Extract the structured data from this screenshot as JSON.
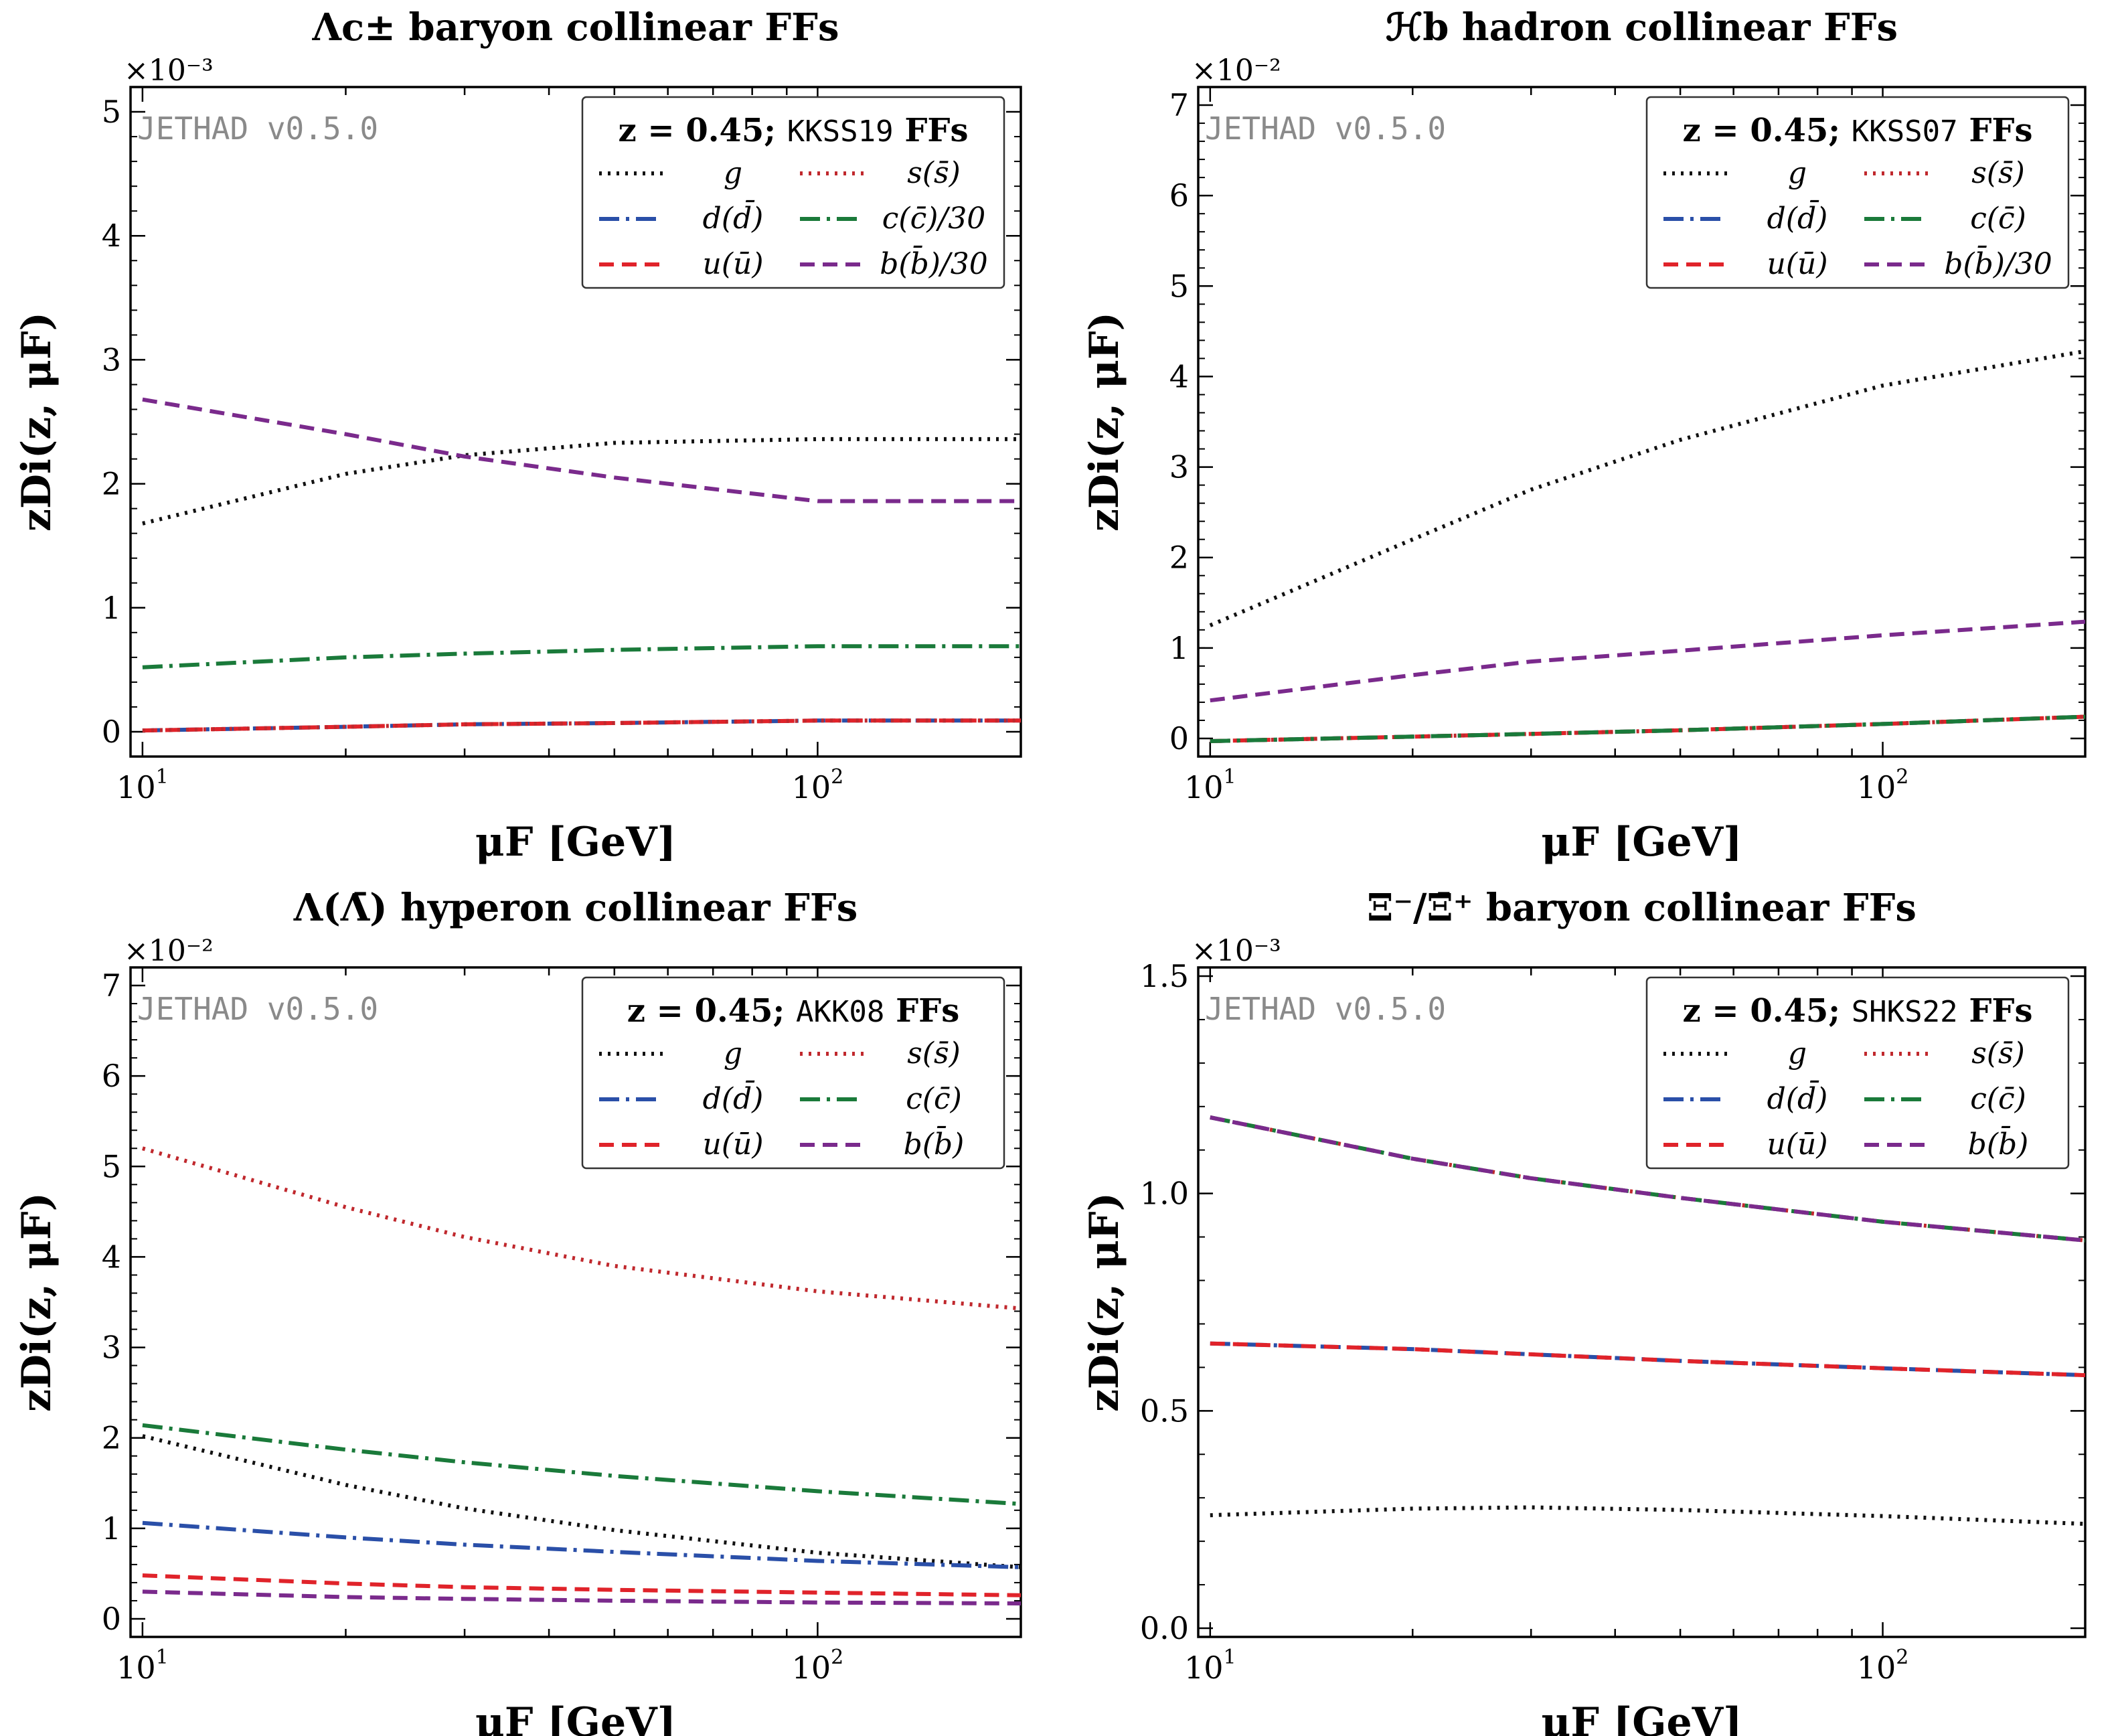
{
  "figure": {
    "legend_z_label": "z = 0.45;",
    "watermark": "JETHAD v0.5.0",
    "xlabel": "μF [GeV]",
    "ylabel": "zDi(z, μF)",
    "x_tick_labels": [
      "10",
      "10"
    ],
    "x_tick_exponents": [
      "1",
      "2"
    ]
  },
  "chart_data": [
    {
      "type": "line",
      "title": "Λc± baryon collinear FFs",
      "xlabel": "μF [GeV]",
      "ylabel": "zDi(z, μF)",
      "xscale": "log",
      "xlim": [
        9.6,
        200
      ],
      "ylim": [
        -0.2,
        5.2
      ],
      "y_multiplier": "×10⁻³",
      "y_ticks": [
        0,
        1,
        2,
        3,
        4,
        5
      ],
      "legend_set": "KKSS19",
      "legend_suffix": "FFs",
      "legend_position": "top-right",
      "x": [
        10,
        20,
        30,
        50,
        100,
        200
      ],
      "series": [
        {
          "name": "g",
          "style": "dotted",
          "color": "#111111",
          "values": [
            1.68,
            2.08,
            2.23,
            2.33,
            2.36,
            2.36
          ]
        },
        {
          "name": "d(d̄)",
          "style": "dashdot",
          "color": "#2a4fa8",
          "values": [
            0.01,
            0.04,
            0.06,
            0.07,
            0.09,
            0.09
          ]
        },
        {
          "name": "u(ū)",
          "style": "dashed",
          "color": "#e0232a",
          "values": [
            0.01,
            0.04,
            0.06,
            0.07,
            0.09,
            0.09
          ]
        },
        {
          "name": "s(s̄)",
          "style": "dotted",
          "color": "#c0282d",
          "values": [
            0.01,
            0.04,
            0.06,
            0.07,
            0.09,
            0.09
          ]
        },
        {
          "name": "c(c̄)/30",
          "style": "dashdot",
          "color": "#1a7a3a",
          "values": [
            0.52,
            0.6,
            0.63,
            0.66,
            0.69,
            0.69
          ]
        },
        {
          "name": "b(b̄)/30",
          "style": "dashed",
          "color": "#7a2a8c",
          "values": [
            2.68,
            2.4,
            2.22,
            2.05,
            1.86,
            1.86
          ]
        }
      ]
    },
    {
      "type": "line",
      "title": "ℋb hadron collinear FFs",
      "xlabel": "μF [GeV]",
      "ylabel": "zDi(z, μF)",
      "xscale": "log",
      "xlim": [
        9.6,
        200
      ],
      "ylim": [
        -0.2,
        7.2
      ],
      "y_multiplier": "×10⁻²",
      "y_ticks": [
        0,
        1,
        2,
        3,
        4,
        5,
        6,
        7
      ],
      "legend_set": "KKSS07",
      "legend_suffix": "FFs",
      "legend_position": "top-right",
      "x": [
        10,
        20,
        30,
        50,
        100,
        200
      ],
      "series": [
        {
          "name": "g",
          "style": "dotted",
          "color": "#111111",
          "values": [
            1.25,
            2.2,
            2.75,
            3.3,
            3.9,
            4.28
          ]
        },
        {
          "name": "d(d̄)",
          "style": "dashdot",
          "color": "#2a4fa8",
          "values": [
            -0.03,
            0.02,
            0.05,
            0.09,
            0.16,
            0.24
          ]
        },
        {
          "name": "u(ū)",
          "style": "dashed",
          "color": "#e0232a",
          "values": [
            -0.03,
            0.02,
            0.05,
            0.09,
            0.16,
            0.24
          ]
        },
        {
          "name": "s(s̄)",
          "style": "dotted",
          "color": "#c0282d",
          "values": [
            -0.03,
            0.02,
            0.05,
            0.09,
            0.16,
            0.24
          ]
        },
        {
          "name": "c(c̄)",
          "style": "dashdot",
          "color": "#1a7a3a",
          "values": [
            -0.03,
            0.02,
            0.05,
            0.09,
            0.16,
            0.24
          ]
        },
        {
          "name": "b(b̄)/30",
          "style": "dashed",
          "color": "#7a2a8c",
          "values": [
            0.42,
            0.7,
            0.85,
            0.97,
            1.14,
            1.29
          ]
        }
      ]
    },
    {
      "type": "line",
      "title": "Λ(Λ̄) hyperon collinear FFs",
      "xlabel": "μF [GeV]",
      "ylabel": "zDi(z, μF)",
      "xscale": "log",
      "xlim": [
        9.6,
        200
      ],
      "ylim": [
        -0.2,
        7.2
      ],
      "y_multiplier": "×10⁻²",
      "y_ticks": [
        0,
        1,
        2,
        3,
        4,
        5,
        6,
        7
      ],
      "legend_set": "AKK08",
      "legend_suffix": "FFs",
      "legend_position": "top-right",
      "x": [
        10,
        20,
        30,
        50,
        100,
        200
      ],
      "series": [
        {
          "name": "g",
          "style": "dotted",
          "color": "#111111",
          "values": [
            2.02,
            1.48,
            1.22,
            0.98,
            0.73,
            0.57
          ]
        },
        {
          "name": "d(d̄)",
          "style": "dashdot",
          "color": "#2a4fa8",
          "values": [
            1.06,
            0.9,
            0.82,
            0.74,
            0.64,
            0.57
          ]
        },
        {
          "name": "u(ū)",
          "style": "dashed",
          "color": "#e0232a",
          "values": [
            0.48,
            0.39,
            0.35,
            0.32,
            0.29,
            0.26
          ]
        },
        {
          "name": "s(s̄)",
          "style": "dotted",
          "color": "#c0282d",
          "values": [
            5.2,
            4.55,
            4.22,
            3.9,
            3.62,
            3.43
          ]
        },
        {
          "name": "c(c̄)",
          "style": "dashdot",
          "color": "#1a7a3a",
          "values": [
            2.14,
            1.87,
            1.73,
            1.58,
            1.41,
            1.27
          ]
        },
        {
          "name": "b(b̄)",
          "style": "dashed",
          "color": "#7a2a8c",
          "values": [
            0.3,
            0.24,
            0.22,
            0.2,
            0.18,
            0.17
          ]
        }
      ]
    },
    {
      "type": "line",
      "title": "Ξ⁻/Ξ̄⁺ baryon collinear FFs",
      "xlabel": "μF [GeV]",
      "ylabel": "zDi(z, μF)",
      "xscale": "log",
      "xlim": [
        9.6,
        200
      ],
      "ylim": [
        -0.02,
        1.52
      ],
      "y_multiplier": "×10⁻³",
      "y_ticks": [
        0.0,
        0.5,
        1.0,
        1.5
      ],
      "legend_set": "SHKS22",
      "legend_suffix": "FFs",
      "legend_position": "top-right",
      "x": [
        10,
        20,
        30,
        50,
        100,
        200
      ],
      "series": [
        {
          "name": "g",
          "style": "dotted",
          "color": "#111111",
          "values": [
            0.26,
            0.275,
            0.278,
            0.272,
            0.258,
            0.24
          ]
        },
        {
          "name": "d(d̄)",
          "style": "dashdot",
          "color": "#2a4fa8",
          "values": [
            0.655,
            0.642,
            0.63,
            0.615,
            0.598,
            0.582
          ]
        },
        {
          "name": "u(ū)",
          "style": "dashed",
          "color": "#e0232a",
          "values": [
            0.655,
            0.642,
            0.63,
            0.615,
            0.598,
            0.582
          ]
        },
        {
          "name": "s(s̄)",
          "style": "dotted",
          "color": "#c0282d",
          "values": [
            1.175,
            1.08,
            1.035,
            0.99,
            0.935,
            0.892
          ]
        },
        {
          "name": "c(c̄)",
          "style": "dashdot",
          "color": "#1a7a3a",
          "values": [
            1.175,
            1.08,
            1.035,
            0.99,
            0.935,
            0.892
          ]
        },
        {
          "name": "b(b̄)",
          "style": "dashed",
          "color": "#7a2a8c",
          "values": [
            1.175,
            1.08,
            1.035,
            0.99,
            0.935,
            0.892
          ]
        }
      ]
    }
  ]
}
